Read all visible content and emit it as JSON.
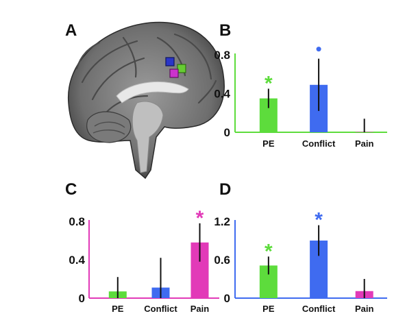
{
  "panel_letters": {
    "A": "A",
    "B": "B",
    "C": "C",
    "D": "D"
  },
  "brain_image": {
    "roi_colors": [
      "#2a35c8",
      "#66cc33",
      "#cc33cc"
    ]
  },
  "chart_data": [
    {
      "panel": "B",
      "type": "bar",
      "title": "",
      "xlabel": "",
      "ylabel": "",
      "categories": [
        "PE",
        "Conflict",
        "Pain"
      ],
      "values": [
        0.35,
        0.49,
        0.0
      ],
      "errors": [
        0.1,
        0.27,
        0.14
      ],
      "bar_colors": [
        "#5ddc3c",
        "#3f6bf0",
        "#e23ab8"
      ],
      "axis_color": "#5ddc3c",
      "ylim": [
        0,
        0.8
      ],
      "yticks": [
        "0",
        "0.4",
        "0.8"
      ],
      "markers": [
        {
          "category": "PE",
          "symbol": "*",
          "color": "#5ddc3c"
        },
        {
          "category": "Conflict",
          "symbol": "•",
          "color": "#3f6bf0"
        }
      ]
    },
    {
      "panel": "C",
      "type": "bar",
      "title": "",
      "xlabel": "",
      "ylabel": "",
      "categories": [
        "PE",
        "Conflict",
        "Pain"
      ],
      "values": [
        0.07,
        0.11,
        0.58
      ],
      "errors": [
        0.15,
        0.31,
        0.2
      ],
      "bar_colors": [
        "#5ddc3c",
        "#3f6bf0",
        "#e23ab8"
      ],
      "axis_color": "#e23ab8",
      "ylim": [
        0,
        0.8
      ],
      "yticks": [
        "0",
        "0.4",
        "0.8"
      ],
      "markers": [
        {
          "category": "Pain",
          "symbol": "*",
          "color": "#e23ab8"
        }
      ]
    },
    {
      "panel": "D",
      "type": "bar",
      "title": "",
      "xlabel": "",
      "ylabel": "",
      "categories": [
        "PE",
        "Conflict",
        "Pain"
      ],
      "values": [
        0.51,
        0.9,
        0.11
      ],
      "errors": [
        0.14,
        0.24,
        0.19
      ],
      "bar_colors": [
        "#5ddc3c",
        "#3f6bf0",
        "#e23ab8"
      ],
      "axis_color": "#3f6bf0",
      "ylim": [
        0,
        1.2
      ],
      "yticks": [
        "0",
        "0.6",
        "1.2"
      ],
      "markers": [
        {
          "category": "PE",
          "symbol": "*",
          "color": "#5ddc3c"
        },
        {
          "category": "Conflict",
          "symbol": "*",
          "color": "#3f6bf0"
        }
      ]
    }
  ]
}
